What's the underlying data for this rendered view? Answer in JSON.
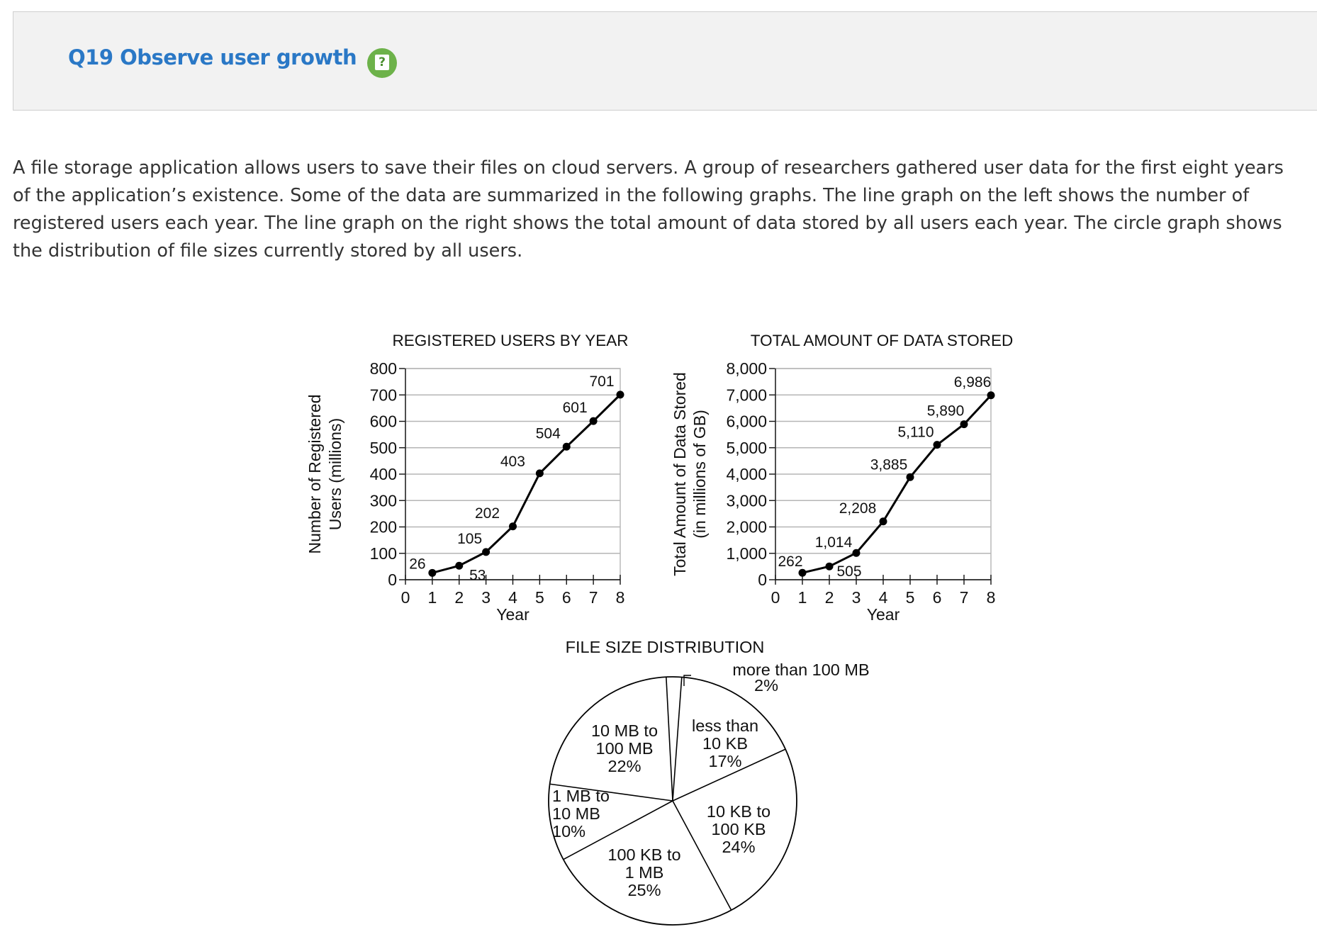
{
  "header": {
    "title": "Q19 Observe user growth",
    "help_icon": "question-mark-icon",
    "help_color": "#6db24a",
    "title_color": "#2a78c6"
  },
  "intro_text": "A file storage application allows users to save their files on cloud servers. A group of researchers gathered user data for the first eight years of the application’s existence. Some of the data are summarized in the following graphs. The line graph on the left shows the number of registered users each year. The line graph on the right shows the total amount of data stored by all users each year. The circle graph shows the distribution of file sizes currently stored by all users.",
  "chart_data": [
    {
      "type": "line",
      "title": "REGISTERED USERS BY YEAR",
      "xlabel": "Year",
      "ylabel": "Number of Registered Users (millions)",
      "ylabel_lines": [
        "Number of Registered",
        "Users (millions)"
      ],
      "x": [
        1,
        2,
        3,
        4,
        5,
        6,
        7,
        8
      ],
      "y": [
        26,
        53,
        105,
        202,
        403,
        504,
        601,
        701
      ],
      "point_labels": [
        "26",
        "53",
        "105",
        "202",
        "403",
        "504",
        "601",
        "701"
      ],
      "xlim": [
        0,
        8
      ],
      "ylim": [
        0,
        800
      ],
      "xticks": [
        "0",
        "1",
        "2",
        "3",
        "4",
        "5",
        "6",
        "7",
        "8"
      ],
      "yticks": [
        "0",
        "100",
        "200",
        "300",
        "400",
        "500",
        "600",
        "700",
        "800"
      ],
      "grid": true
    },
    {
      "type": "line",
      "title": "TOTAL AMOUNT OF DATA STORED",
      "xlabel": "Year",
      "ylabel": "Total Amount of Data Stored (in millions of GB)",
      "ylabel_lines": [
        "Total Amount of Data Stored",
        "(in millions of GB)"
      ],
      "x": [
        1,
        2,
        3,
        4,
        5,
        6,
        7,
        8
      ],
      "y": [
        262,
        505,
        1014,
        2208,
        3885,
        5110,
        5890,
        6986
      ],
      "point_labels": [
        "262",
        "505",
        "1,014",
        "2,208",
        "3,885",
        "5,110",
        "5,890",
        "6,986"
      ],
      "xlim": [
        0,
        8
      ],
      "ylim": [
        0,
        8000
      ],
      "xticks": [
        "0",
        "1",
        "2",
        "3",
        "4",
        "5",
        "6",
        "7",
        "8"
      ],
      "yticks": [
        "0",
        "1,000",
        "2,000",
        "3,000",
        "4,000",
        "5,000",
        "6,000",
        "7,000",
        "8,000"
      ],
      "grid": true
    },
    {
      "type": "pie",
      "title": "FILE SIZE DISTRIBUTION",
      "slices": [
        {
          "label": [
            "more than 100 MB",
            "2%"
          ],
          "value": 2
        },
        {
          "label": [
            "less than",
            "10 KB",
            "17%"
          ],
          "value": 17
        },
        {
          "label": [
            "10 KB to",
            "100 KB",
            "24%"
          ],
          "value": 24
        },
        {
          "label": [
            "100 KB to",
            "1 MB",
            "25%"
          ],
          "value": 25
        },
        {
          "label": [
            "1 MB to",
            "10 MB",
            "10%"
          ],
          "value": 10
        },
        {
          "label": [
            "10 MB to",
            "100 MB",
            "22%"
          ],
          "value": 22
        }
      ]
    }
  ]
}
